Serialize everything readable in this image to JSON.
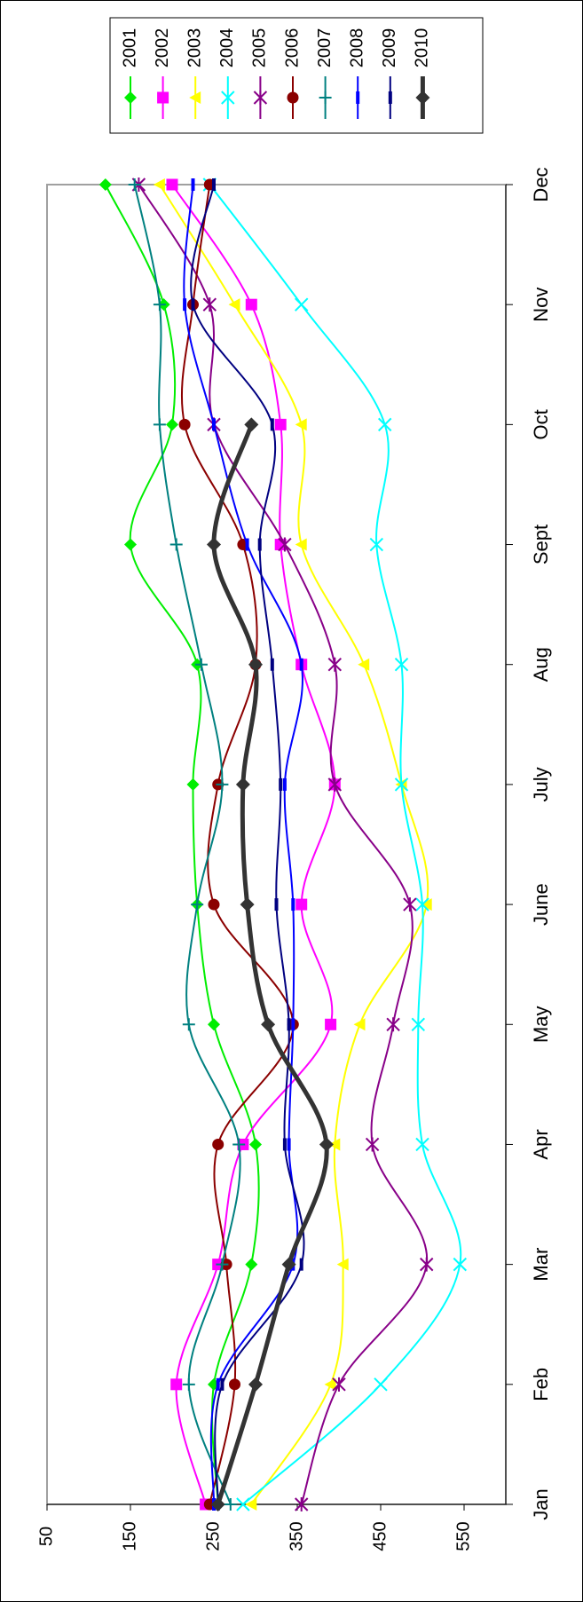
{
  "chart_data": {
    "type": "line",
    "orientation": "rotated-90-cw",
    "categories": [
      "Jan",
      "Feb",
      "Mar",
      "Apr",
      "May",
      "June",
      "July",
      "Aug",
      "Sept",
      "Oct",
      "Nov",
      "Dec"
    ],
    "ylim": [
      50,
      600
    ],
    "yticks": [
      50,
      150,
      250,
      350,
      450,
      550
    ],
    "grid": false,
    "legend_position": "top-right",
    "series": [
      {
        "name": "2001",
        "color": "#00ee00",
        "marker": "diamond",
        "values": [
          255,
          250,
          295,
          300,
          250,
          230,
          225,
          230,
          150,
          200,
          190,
          120
        ]
      },
      {
        "name": "2002",
        "color": "#ff00ff",
        "marker": "square",
        "values": [
          240,
          205,
          255,
          285,
          390,
          355,
          395,
          355,
          330,
          330,
          295,
          200
        ]
      },
      {
        "name": "2003",
        "color": "#ffff00",
        "marker": "triangle",
        "values": [
          295,
          390,
          405,
          395,
          425,
          505,
          475,
          430,
          355,
          355,
          275,
          185
        ]
      },
      {
        "name": "2004",
        "color": "#00ffff",
        "marker": "x",
        "values": [
          285,
          450,
          545,
          500,
          495,
          500,
          475,
          475,
          445,
          455,
          355,
          245
        ]
      },
      {
        "name": "2005",
        "color": "#880088",
        "marker": "star",
        "values": [
          355,
          400,
          505,
          440,
          465,
          485,
          395,
          395,
          335,
          250,
          245,
          160
        ]
      },
      {
        "name": "2006",
        "color": "#8b0000",
        "marker": "circle",
        "values": [
          245,
          275,
          265,
          255,
          345,
          250,
          255,
          300,
          285,
          215,
          225,
          245
        ]
      },
      {
        "name": "2007",
        "color": "#008080",
        "marker": "plus",
        "values": [
          270,
          220,
          260,
          280,
          220,
          230,
          260,
          235,
          205,
          185,
          185,
          155
        ]
      },
      {
        "name": "2008",
        "color": "#0000ff",
        "marker": "dash",
        "values": [
          250,
          255,
          345,
          340,
          345,
          345,
          335,
          355,
          290,
          250,
          215,
          225
        ]
      },
      {
        "name": "2009",
        "color": "#000080",
        "marker": "dash",
        "values": [
          255,
          260,
          355,
          335,
          340,
          325,
          330,
          320,
          305,
          320,
          225,
          250
        ]
      },
      {
        "name": "2010",
        "color": "#333333",
        "marker": "diamond",
        "bold": true,
        "values": [
          255,
          300,
          340,
          385,
          315,
          290,
          285,
          300,
          250,
          295,
          null,
          null
        ]
      }
    ]
  }
}
